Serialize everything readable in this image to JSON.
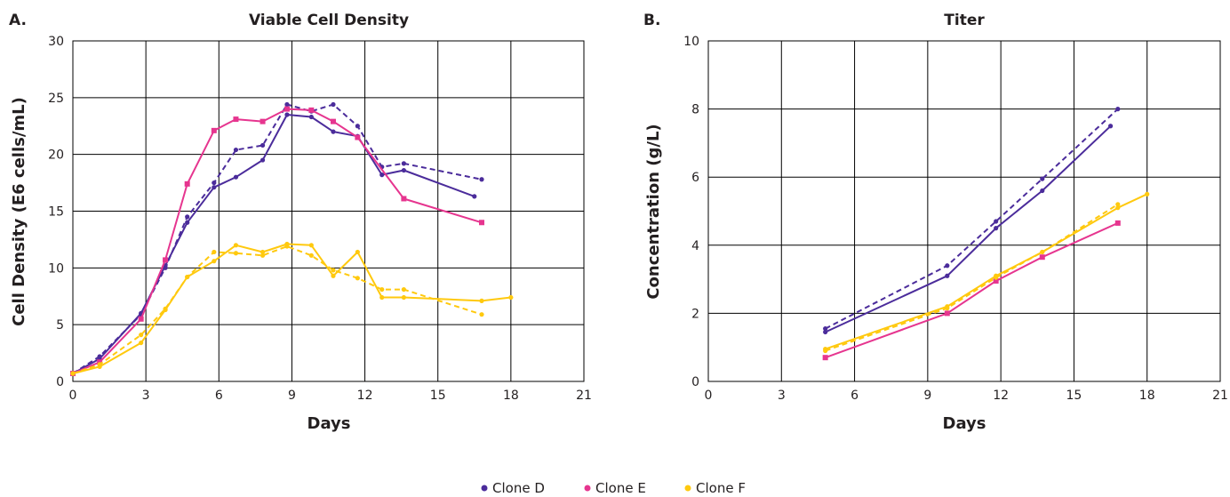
{
  "colors": {
    "clone_d": "#4b2c9b",
    "clone_e": "#e6358f",
    "clone_f": "#ffc90e"
  },
  "legend": [
    {
      "label": "Clone D",
      "color_key": "clone_d"
    },
    {
      "label": "Clone E",
      "color_key": "clone_e"
    },
    {
      "label": "Clone F",
      "color_key": "clone_f"
    }
  ],
  "chart_data": [
    {
      "panel": "A.",
      "type": "line",
      "title": "Viable Cell Density",
      "xlabel": "Days",
      "ylabel": "Cell Density (E6 cells/mL)",
      "xlim": [
        0,
        21
      ],
      "ylim": [
        0,
        30
      ],
      "xticks": [
        0,
        3,
        6,
        9,
        12,
        15,
        18,
        21
      ],
      "yticks": [
        0,
        5,
        10,
        15,
        20,
        25,
        30
      ],
      "grid": true,
      "series": [
        {
          "color_key": "clone_d",
          "dashed": false,
          "marker": "circle",
          "x": [
            0,
            1.1,
            2.8,
            3.8,
            4.7,
            5.8,
            6.7,
            7.8,
            8.8,
            9.8,
            10.7,
            11.7,
            12.7,
            13.6,
            16.5
          ],
          "y": [
            0.7,
            2.0,
            6.0,
            10.2,
            14.0,
            17.1,
            18.0,
            19.5,
            23.5,
            23.3,
            22.0,
            21.6,
            18.2,
            18.6,
            16.3
          ]
        },
        {
          "color_key": "clone_d",
          "dashed": true,
          "marker": "circle",
          "x": [
            0,
            1.1,
            2.8,
            3.8,
            4.7,
            5.8,
            6.7,
            7.8,
            8.8,
            9.8,
            10.7,
            11.7,
            12.7,
            13.6,
            16.8
          ],
          "y": [
            0.7,
            2.2,
            5.9,
            10.0,
            14.5,
            17.5,
            20.4,
            20.8,
            24.4,
            23.8,
            24.4,
            22.5,
            18.9,
            19.2,
            17.8
          ]
        },
        {
          "color_key": "clone_e",
          "dashed": false,
          "marker": "square",
          "x": [
            0,
            1.1,
            2.8,
            3.8,
            4.7,
            5.8,
            6.7,
            7.8,
            8.8,
            9.8,
            10.7,
            11.7,
            13.6,
            16.8
          ],
          "y": [
            0.7,
            1.7,
            5.5,
            10.7,
            17.4,
            22.1,
            23.1,
            22.9,
            24.0,
            23.9,
            22.9,
            21.5,
            16.1,
            14.0
          ]
        },
        {
          "color_key": "clone_f",
          "dashed": false,
          "marker": "circle",
          "x": [
            0,
            1.1,
            2.8,
            3.8,
            4.7,
            5.8,
            6.7,
            7.8,
            8.8,
            9.8,
            10.7,
            11.7,
            12.7,
            13.6,
            16.8,
            18.0
          ],
          "y": [
            0.7,
            1.3,
            3.4,
            6.3,
            9.2,
            10.6,
            12.0,
            11.4,
            12.1,
            12.0,
            9.3,
            11.4,
            7.4,
            7.4,
            7.1,
            7.4
          ]
        },
        {
          "color_key": "clone_f",
          "dashed": true,
          "marker": "circle",
          "x": [
            0,
            1.1,
            2.8,
            3.8,
            4.7,
            5.8,
            6.7,
            7.8,
            8.8,
            9.8,
            10.7,
            11.7,
            12.7,
            13.6,
            16.8
          ],
          "y": [
            0.7,
            1.5,
            4.1,
            6.4,
            9.2,
            11.4,
            11.3,
            11.1,
            11.9,
            11.1,
            9.8,
            9.1,
            8.1,
            8.1,
            5.9
          ]
        }
      ]
    },
    {
      "panel": "B.",
      "type": "line",
      "title": "Titer",
      "xlabel": "Days",
      "ylabel": "Concentration (g/L)",
      "xlim": [
        0,
        21
      ],
      "ylim": [
        0,
        10
      ],
      "xticks": [
        0,
        3,
        6,
        9,
        12,
        15,
        18,
        21
      ],
      "yticks": [
        0,
        2,
        4,
        6,
        8,
        10
      ],
      "grid": true,
      "series": [
        {
          "color_key": "clone_d",
          "dashed": false,
          "marker": "circle",
          "x": [
            4.8,
            9.8,
            11.8,
            13.7,
            16.5
          ],
          "y": [
            1.45,
            3.1,
            4.5,
            5.6,
            7.5
          ]
        },
        {
          "color_key": "clone_d",
          "dashed": true,
          "marker": "circle",
          "x": [
            4.8,
            9.8,
            11.8,
            13.7,
            16.8
          ],
          "y": [
            1.55,
            3.4,
            4.7,
            5.95,
            8.0
          ]
        },
        {
          "color_key": "clone_e",
          "dashed": false,
          "marker": "square",
          "x": [
            4.8,
            9.8,
            11.8,
            13.7,
            16.8
          ],
          "y": [
            0.7,
            2.0,
            2.95,
            3.65,
            4.65
          ]
        },
        {
          "color_key": "clone_f",
          "dashed": false,
          "marker": "circle",
          "x": [
            4.8,
            9.8,
            11.8,
            13.7,
            16.8,
            18.0
          ],
          "y": [
            0.95,
            2.2,
            3.1,
            3.8,
            5.1,
            5.5
          ]
        },
        {
          "color_key": "clone_f",
          "dashed": true,
          "marker": "circle",
          "x": [
            4.8,
            9.8,
            11.8,
            13.7,
            16.8
          ],
          "y": [
            0.9,
            2.15,
            3.05,
            3.8,
            5.2
          ]
        }
      ]
    }
  ]
}
